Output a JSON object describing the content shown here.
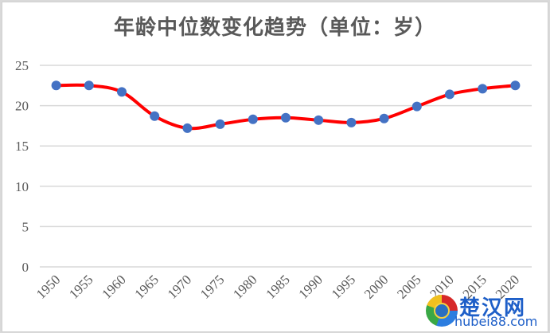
{
  "chart_data": {
    "type": "line",
    "title": "年龄中位数变化趋势（单位：岁）",
    "xlabel": "",
    "ylabel": "",
    "categories": [
      "1950",
      "1955",
      "1960",
      "1965",
      "1970",
      "1975",
      "1980",
      "1985",
      "1990",
      "1995",
      "2000",
      "2005",
      "2010",
      "2015",
      "2020"
    ],
    "series": [
      {
        "name": "年龄中位数",
        "values": [
          22.5,
          22.5,
          21.7,
          18.7,
          17.2,
          17.7,
          18.3,
          18.5,
          18.2,
          17.9,
          18.4,
          19.9,
          21.4,
          22.1,
          22.5
        ],
        "line_color": "#ff0000",
        "marker_color": "#4472c4",
        "smooth": true
      }
    ],
    "ylim": [
      0,
      25
    ],
    "yticks": [
      0,
      5,
      10,
      15,
      20,
      25
    ],
    "grid": true,
    "legend": "none"
  },
  "colors": {
    "line": "#ff0000",
    "marker": "#4472c4",
    "grid": "#d9d9d9",
    "text": "#595959"
  },
  "watermark": {
    "name_cn": "楚汉网",
    "url": "hubei88.com"
  }
}
